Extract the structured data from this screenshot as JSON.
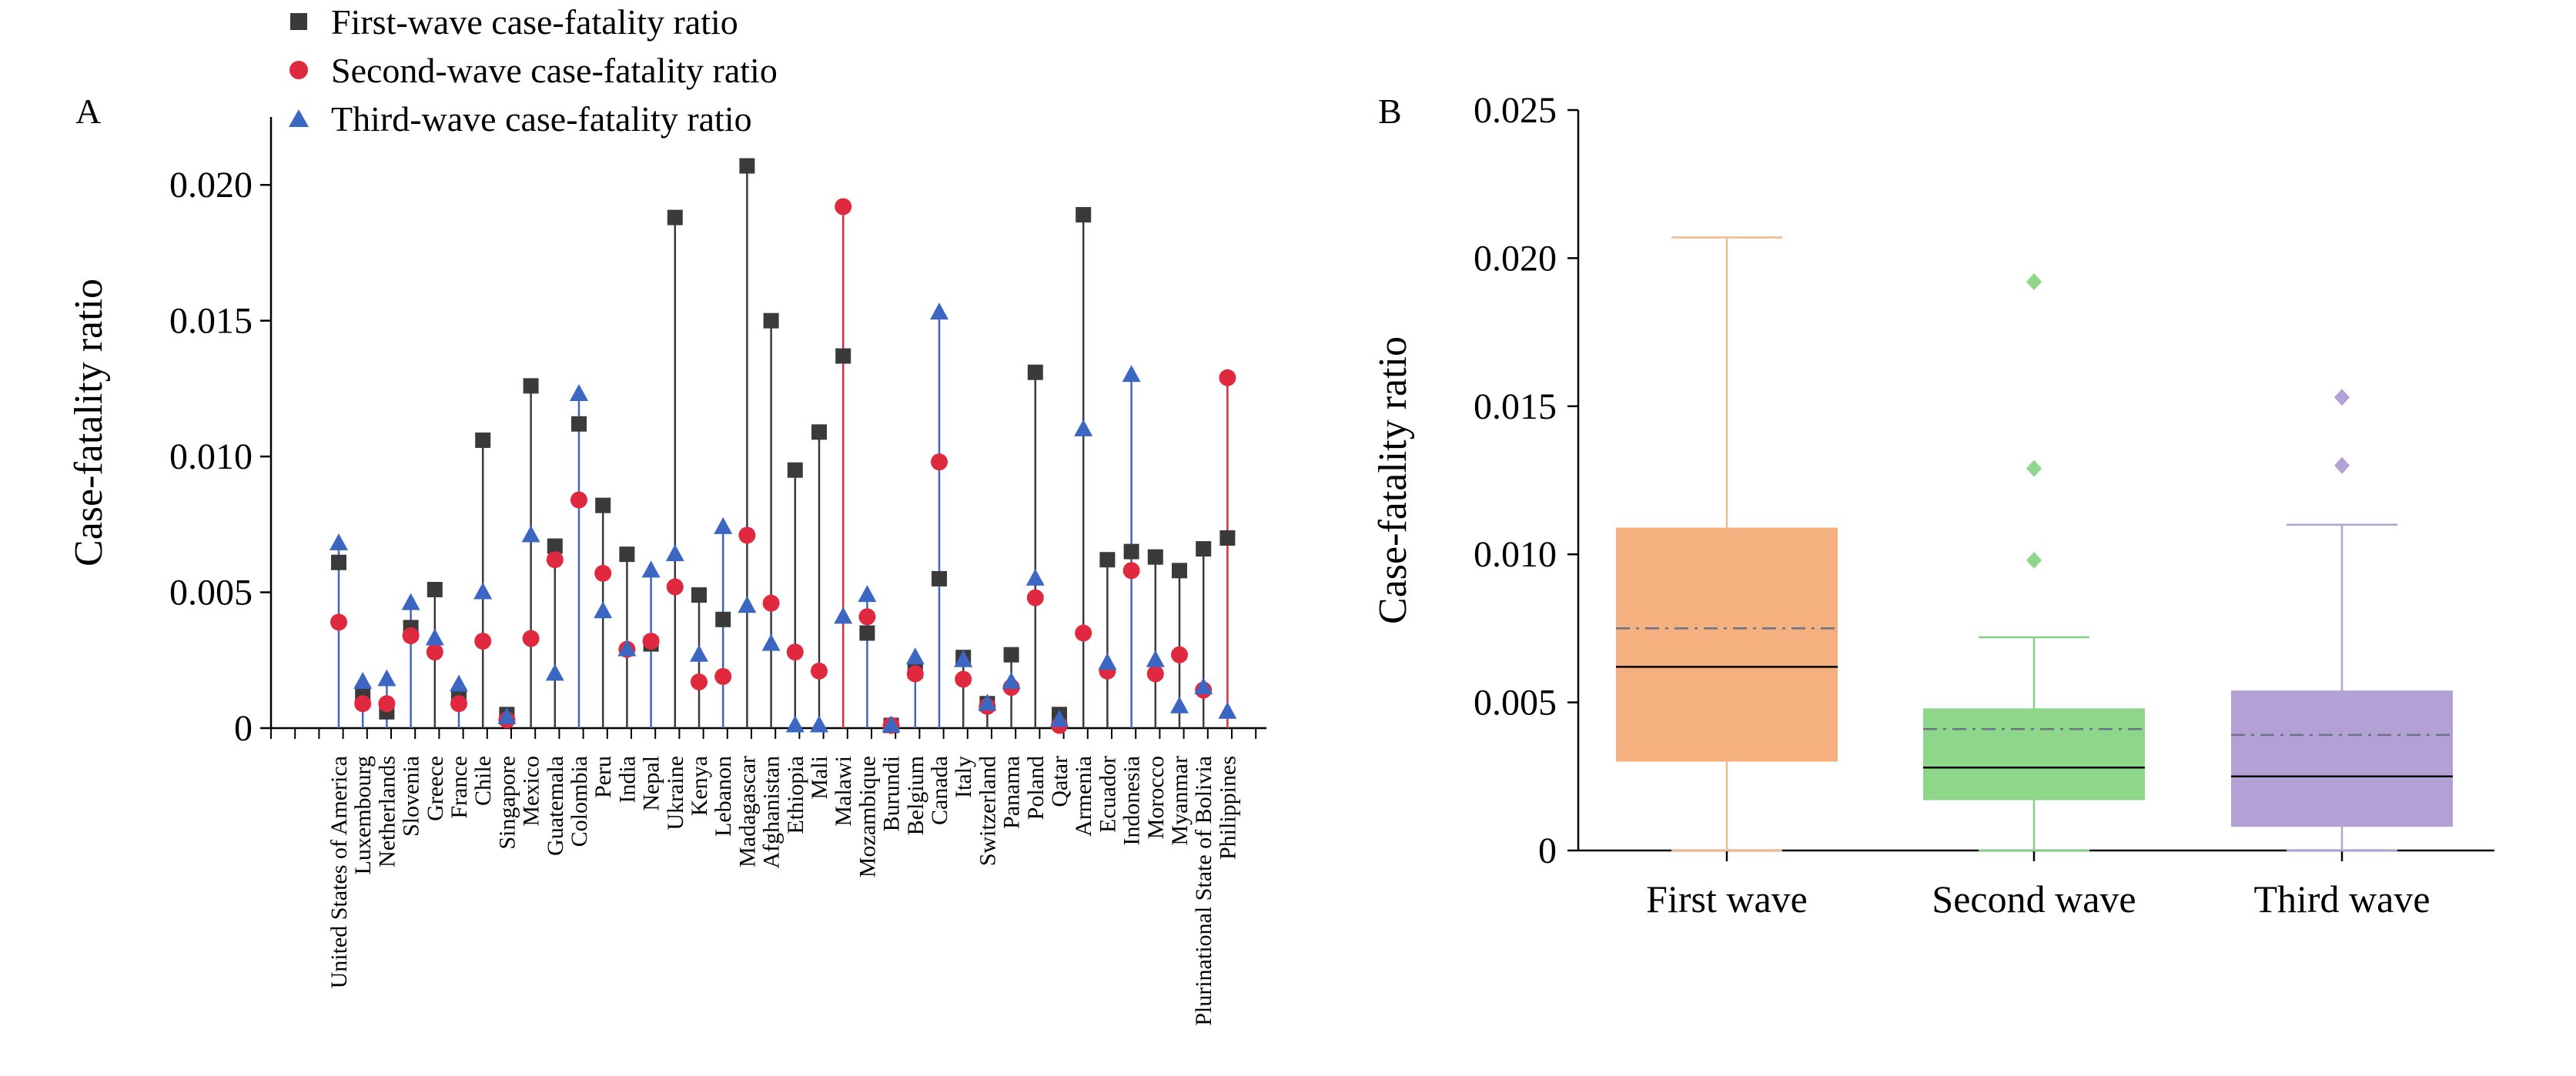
{
  "colors": {
    "first": "#3a3a3a",
    "second": "#e0283f",
    "third": "#3b67c3",
    "box_first": "#f5b080",
    "box_first_line": "#edbb8c",
    "box_second": "#8ed78a",
    "box_second_line": "#86cf85",
    "box_third": "#b3a0d4",
    "box_third_line": "#b3a0d4",
    "mean_line": "#6a7385"
  },
  "icons": {
    "first": "square-marker",
    "second": "circle-marker",
    "third": "triangle-marker"
  },
  "chart_data": [
    {
      "type": "scatter",
      "panel": "A",
      "ylabel": "Case-fatality ratio",
      "ylim": [
        0,
        0.0225
      ],
      "yticks": [
        0,
        0.005,
        0.01,
        0.015,
        0.02
      ],
      "ytick_labels": [
        "0",
        "0.005",
        "0.010",
        "0.015",
        "0.020"
      ],
      "legend": [
        "First-wave case-fatality ratio",
        "Second-wave case-fatality ratio",
        "Third-wave case-fatality ratio"
      ],
      "legend_position": "top",
      "categories": [
        "United States of America",
        "Luxembourg",
        "Netherlands",
        "Slovenia",
        "Greece",
        "France",
        "Chile",
        "Singapore",
        "Mexico",
        "Guatemala",
        "Colombia",
        "Peru",
        "India",
        "Nepal",
        "Ukraine",
        "Kenya",
        "Lebanon",
        "Madagascar",
        "Afghanistan",
        "Ethiopia",
        "Mali",
        "Malawi",
        "Mozambique",
        "Burundi",
        "Belgium",
        "Canada",
        "Italy",
        "Switzerland",
        "Panama",
        "Poland",
        "Qatar",
        "Armenia",
        "Ecuador",
        "Indonesia",
        "Morocco",
        "Myanmar",
        "Plurinational State of Bolivia",
        "Philippines"
      ],
      "series": [
        {
          "values": [
            0.0061,
            0.0013,
            0.0006,
            0.0037,
            0.0051,
            0.0012,
            0.0106,
            0.0005,
            0.0126,
            0.0067,
            0.0112,
            0.0082,
            0.0064,
            0.0031,
            0.0188,
            0.0049,
            0.004,
            0.0207,
            0.015,
            0.0095,
            0.0109,
            0.0137,
            0.0035,
            0.0001,
            0.0021,
            0.0055,
            0.0026,
            0.0009,
            0.0027,
            0.0131,
            0.0005,
            0.0189,
            0.0062,
            0.0065,
            0.0063,
            0.0058,
            0.0066,
            0.007
          ]
        },
        {
          "values": [
            0.0039,
            0.0009,
            0.0009,
            0.0034,
            0.0028,
            0.0009,
            0.0032,
            0.0003,
            0.0033,
            0.0062,
            0.0084,
            0.0057,
            0.0029,
            0.0032,
            0.0052,
            0.0017,
            0.0019,
            0.0071,
            0.0046,
            0.0028,
            0.0021,
            0.0192,
            0.0041,
            0.0001,
            0.002,
            0.0098,
            0.0018,
            0.0008,
            0.0015,
            0.0048,
            0.0001,
            0.0035,
            0.0021,
            0.0058,
            0.002,
            0.0027,
            0.0014,
            0.0129
          ]
        },
        {
          "values": [
            0.0068,
            0.0017,
            0.0018,
            0.0046,
            0.0033,
            0.0016,
            0.005,
            0.0004,
            0.0071,
            0.002,
            0.0123,
            0.0043,
            0.0029,
            0.0058,
            0.0064,
            0.0027,
            0.0074,
            0.0045,
            0.0031,
            0.0001,
            0.0001,
            0.0041,
            0.0049,
            0.0001,
            0.0026,
            0.0153,
            0.0025,
            0.0009,
            0.0017,
            0.0055,
            0.0003,
            0.011,
            0.0024,
            0.013,
            0.0025,
            0.0008,
            0.0015,
            0.0006
          ]
        }
      ]
    },
    {
      "type": "box",
      "panel": "B",
      "ylabel": "Case-fatality ratio",
      "ylim": [
        0,
        0.025
      ],
      "yticks": [
        0,
        0.005,
        0.01,
        0.015,
        0.02,
        0.025
      ],
      "ytick_labels": [
        "0",
        "0.005",
        "0.010",
        "0.015",
        "0.020",
        "0.025"
      ],
      "categories": [
        "First wave",
        "Second wave",
        "Third wave"
      ],
      "boxes": [
        {
          "whisker_low": 0.0,
          "q1": 0.003,
          "median": 0.0062,
          "mean": 0.0075,
          "q3": 0.0109,
          "whisker_high": 0.0207,
          "outliers": []
        },
        {
          "whisker_low": 0.0,
          "q1": 0.0017,
          "median": 0.0028,
          "mean": 0.0041,
          "q3": 0.0048,
          "whisker_high": 0.0072,
          "outliers": [
            0.0098,
            0.0129,
            0.0192
          ]
        },
        {
          "whisker_low": 0.0,
          "q1": 0.0008,
          "median": 0.0025,
          "mean": 0.0039,
          "q3": 0.0054,
          "whisker_high": 0.011,
          "outliers": [
            0.013,
            0.0153
          ]
        }
      ]
    }
  ]
}
